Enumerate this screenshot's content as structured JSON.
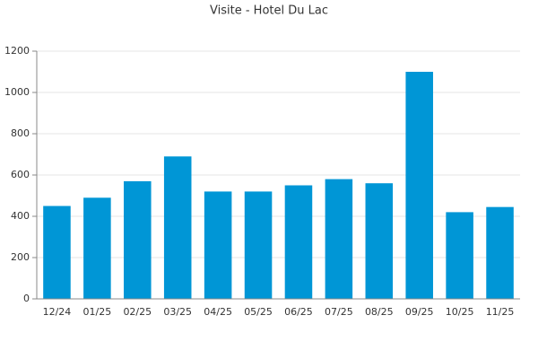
{
  "chart_data": {
    "type": "bar",
    "title": "Visite - Hotel Du Lac",
    "categories": [
      "12/24",
      "01/25",
      "02/25",
      "03/25",
      "04/25",
      "05/25",
      "06/25",
      "07/25",
      "08/25",
      "09/25",
      "10/25",
      "11/25"
    ],
    "values": [
      450,
      490,
      570,
      690,
      520,
      520,
      550,
      580,
      560,
      1100,
      420,
      445
    ],
    "color": "#0096d6",
    "ylim": [
      0,
      1200
    ],
    "yticks": [
      0,
      200,
      400,
      600,
      800,
      1000,
      1200
    ],
    "grid": true
  }
}
